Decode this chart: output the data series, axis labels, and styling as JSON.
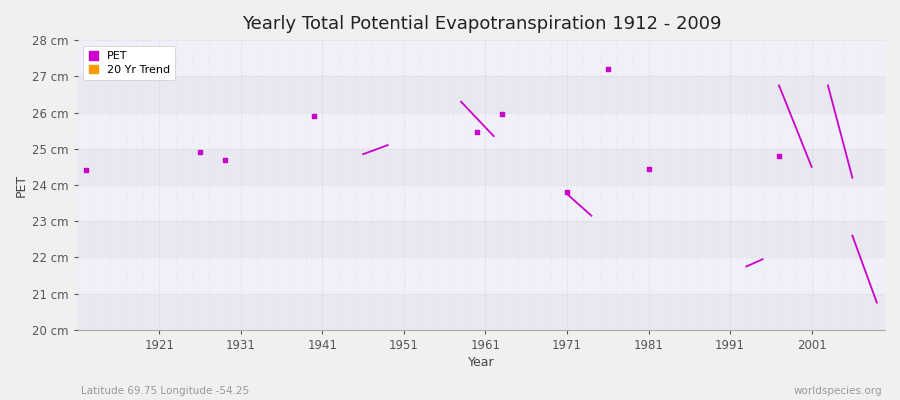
{
  "title": "Yearly Total Potential Evapotranspiration 1912 - 2009",
  "xlabel": "Year",
  "ylabel": "PET",
  "subtitle_left": "Latitude 69.75 Longitude -54.25",
  "subtitle_right": "worldspecies.org",
  "xlim": [
    1911,
    2010
  ],
  "ylim": [
    20,
    28
  ],
  "yticks": [
    20,
    21,
    22,
    23,
    24,
    25,
    26,
    27,
    28
  ],
  "ytick_labels": [
    "20 cm",
    "21 cm",
    "22 cm",
    "23 cm",
    "24 cm",
    "25 cm",
    "26 cm",
    "27 cm",
    "28 cm"
  ],
  "xticks": [
    1921,
    1931,
    1941,
    1951,
    1961,
    1971,
    1981,
    1991,
    2001
  ],
  "background_color": "#f0f0f0",
  "plot_bg_color": "#f0f0f5",
  "band_colors": [
    "#e8e8f0",
    "#f0f0f8"
  ],
  "grid_major_color": "#ccccdd",
  "grid_minor_color": "#d8d8e8",
  "pet_color": "#cc00cc",
  "trend_color": "#ff9900",
  "pet_points": [
    [
      1912,
      24.4
    ],
    [
      1926,
      24.9
    ],
    [
      1929,
      24.7
    ],
    [
      1940,
      25.9
    ],
    [
      1960,
      25.45
    ],
    [
      1963,
      25.95
    ],
    [
      1971,
      23.8
    ],
    [
      1976,
      27.2
    ],
    [
      1981,
      24.45
    ],
    [
      1997,
      24.8
    ]
  ],
  "trend_segments": [
    [
      [
        1946,
        24.85
      ],
      [
        1949,
        25.1
      ]
    ],
    [
      [
        1958,
        26.3
      ],
      [
        1962,
        25.35
      ]
    ],
    [
      [
        1971,
        23.75
      ],
      [
        1974,
        23.15
      ]
    ],
    [
      [
        1993,
        21.75
      ],
      [
        1995,
        21.95
      ]
    ],
    [
      [
        1997,
        26.75
      ],
      [
        2001,
        24.5
      ]
    ],
    [
      [
        2003,
        26.75
      ],
      [
        2006,
        24.2
      ]
    ],
    [
      [
        2006,
        22.6
      ],
      [
        2009,
        20.75
      ]
    ]
  ],
  "title_fontsize": 13,
  "axis_label_fontsize": 9,
  "tick_fontsize": 8.5
}
